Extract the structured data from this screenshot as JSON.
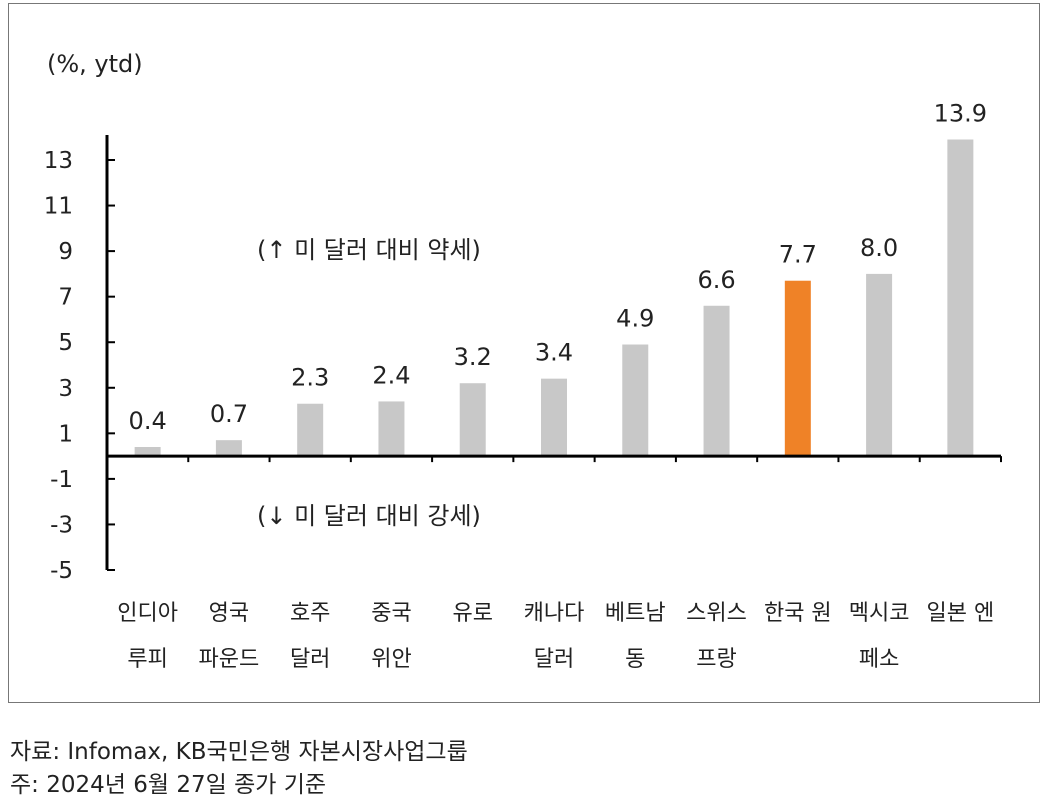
{
  "chart_data": {
    "type": "bar",
    "unit_label": "(%, ytd)",
    "categories": [
      [
        "인디아",
        "루피"
      ],
      [
        "영국",
        "파운드"
      ],
      [
        "호주",
        "달러"
      ],
      [
        "중국",
        "위안"
      ],
      [
        "유로",
        ""
      ],
      [
        "캐나다",
        "달러"
      ],
      [
        "베트남",
        "동"
      ],
      [
        "스위스",
        "프랑"
      ],
      [
        "한국 원",
        ""
      ],
      [
        "멕시코",
        "페소"
      ],
      [
        "일본 엔",
        ""
      ]
    ],
    "values": [
      0.4,
      0.7,
      2.3,
      2.4,
      3.2,
      3.4,
      4.9,
      6.6,
      7.7,
      8.0,
      13.9
    ],
    "data_labels": [
      "0.4",
      "0.7",
      "2.3",
      "2.4",
      "3.2",
      "3.4",
      "4.9",
      "6.6",
      "7.7",
      "8.0",
      "13.9"
    ],
    "highlight_index": 8,
    "ylim": [
      -5,
      15
    ],
    "yticks": [
      13,
      11,
      9,
      7,
      5,
      3,
      1,
      -1,
      -3,
      -5
    ],
    "ytick_labels": [
      "13",
      "11",
      "9",
      "7",
      "5",
      "3",
      "1",
      "-1",
      "-3",
      "-5"
    ],
    "annotations": {
      "above": "(↑ 미 달러 대비 약세)",
      "below": "(↓ 미 달러 대비 강세)"
    },
    "colors": {
      "bar": "#c8c8c8",
      "highlight": "#ef8227",
      "axis": "#000000"
    },
    "grid": false
  },
  "footer": {
    "source": "자료: Infomax, KB국민은행 자본시장사업그룹",
    "note": "주: 2024년 6월 27일 종가 기준"
  }
}
